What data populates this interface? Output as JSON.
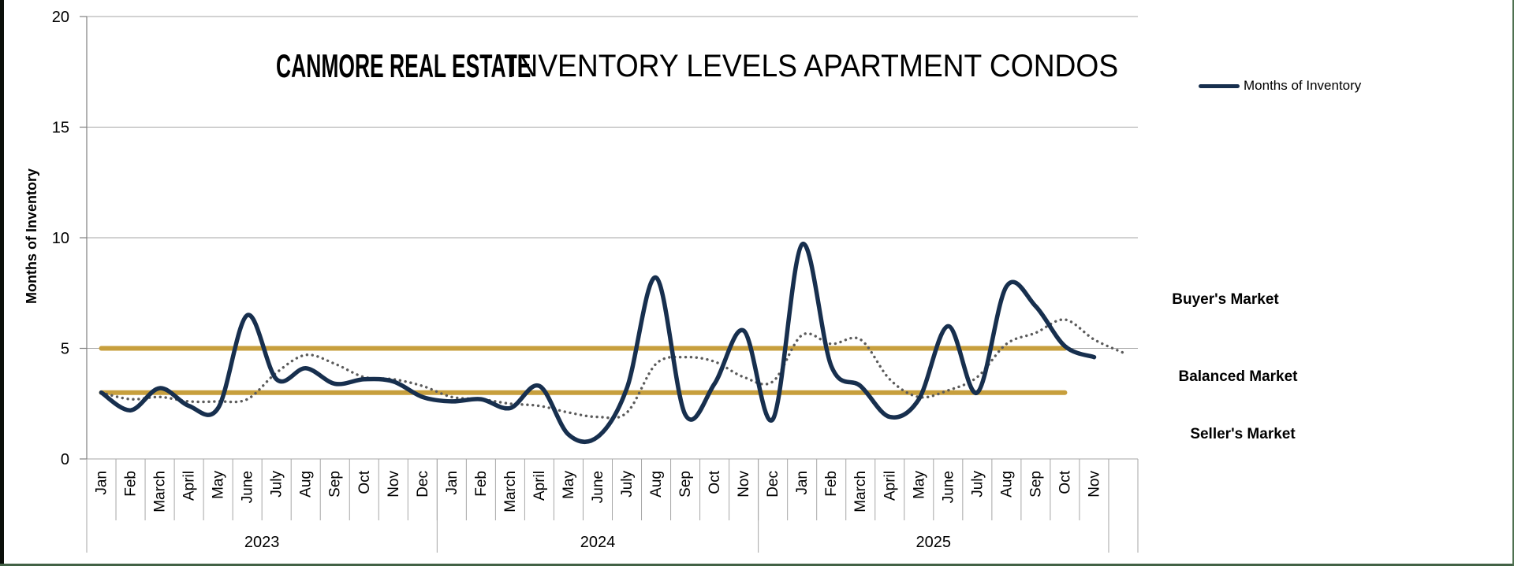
{
  "page": {
    "background": "#FFFFFF"
  },
  "colors": {
    "line_navy": "#172F4E",
    "reference_gold": "#C79F3D",
    "dotted_gray": "#5B5B5B",
    "gridline": "#A6A6A6",
    "axis_line": "#808080",
    "separator": "#A6A6A6",
    "frame_left": "#0B0F0A",
    "frame_green": "#4E7050",
    "text": "#000000"
  },
  "title": {
    "brand": "CANMORE REAL ESTATE",
    "rest": "INVENTORY LEVELS APARTMENT CONDOS"
  },
  "legend": {
    "label": "Months of Inventory"
  },
  "y_axis": {
    "title": "Months of Inventory"
  },
  "market_labels": {
    "buyers": "Buyer's Market",
    "balanced": "Balanced Market",
    "sellers": "Seller's Market"
  },
  "chart_data": {
    "type": "line",
    "title": "CANMORE REAL ESTATE INVENTORY LEVELS APARTMENT CONDOS",
    "ylabel": "Months of Inventory",
    "ylim": [
      0,
      20
    ],
    "y_ticks": [
      0,
      5,
      10,
      15,
      20
    ],
    "grid": "horizontal",
    "legend_position": "top-right",
    "x_year_groups": [
      {
        "label": "2023",
        "months": [
          "Jan",
          "Feb",
          "March",
          "April",
          "May",
          "June",
          "July",
          "Aug",
          "Sep",
          "Oct",
          "Nov",
          "Dec"
        ]
      },
      {
        "label": "2024",
        "months": [
          "Jan",
          "Feb",
          "March",
          "April",
          "May",
          "June",
          "July",
          "Aug",
          "Sep",
          "Oct",
          "Nov"
        ]
      },
      {
        "label": "2025",
        "months": [
          "Dec",
          "Jan",
          "Feb",
          "March",
          "April",
          "May",
          "June",
          "July",
          "Aug",
          "Sep",
          "Oct",
          "Nov"
        ]
      }
    ],
    "trailing_empty_cells": 1,
    "series": [
      {
        "name": "Months of Inventory",
        "line_style": "solid",
        "color": "#172F4E",
        "width": 5.5,
        "values": [
          3.0,
          2.2,
          3.2,
          2.4,
          2.3,
          6.5,
          3.6,
          4.1,
          3.4,
          3.6,
          3.5,
          2.8,
          2.6,
          2.7,
          2.3,
          3.3,
          1.1,
          1.0,
          3.2,
          8.2,
          2.0,
          3.4,
          5.8,
          1.8,
          9.7,
          4.2,
          3.3,
          1.9,
          2.7,
          6.0,
          3.0,
          7.8,
          6.9,
          5.1,
          4.6
        ]
      },
      {
        "name": "",
        "line_style": "dotted",
        "color": "#5B5B5B",
        "width": 3.4,
        "values": [
          3.0,
          2.7,
          2.8,
          2.6,
          2.6,
          2.7,
          3.9,
          4.7,
          4.3,
          3.7,
          3.6,
          3.3,
          2.8,
          2.7,
          2.5,
          2.4,
          2.1,
          1.9,
          2.1,
          4.3,
          4.6,
          4.4,
          3.7,
          3.5,
          5.6,
          5.2,
          5.4,
          3.6,
          2.8,
          3.1,
          3.7,
          5.2,
          5.7,
          6.3,
          5.4,
          4.8
        ]
      }
    ],
    "reference_lines": [
      {
        "value": 5,
        "color": "#C79F3D",
        "width": 6
      },
      {
        "value": 3,
        "color": "#C79F3D",
        "width": 6
      }
    ],
    "annotations": [
      "Buyer's Market",
      "Balanced Market",
      "Seller's Market"
    ]
  }
}
